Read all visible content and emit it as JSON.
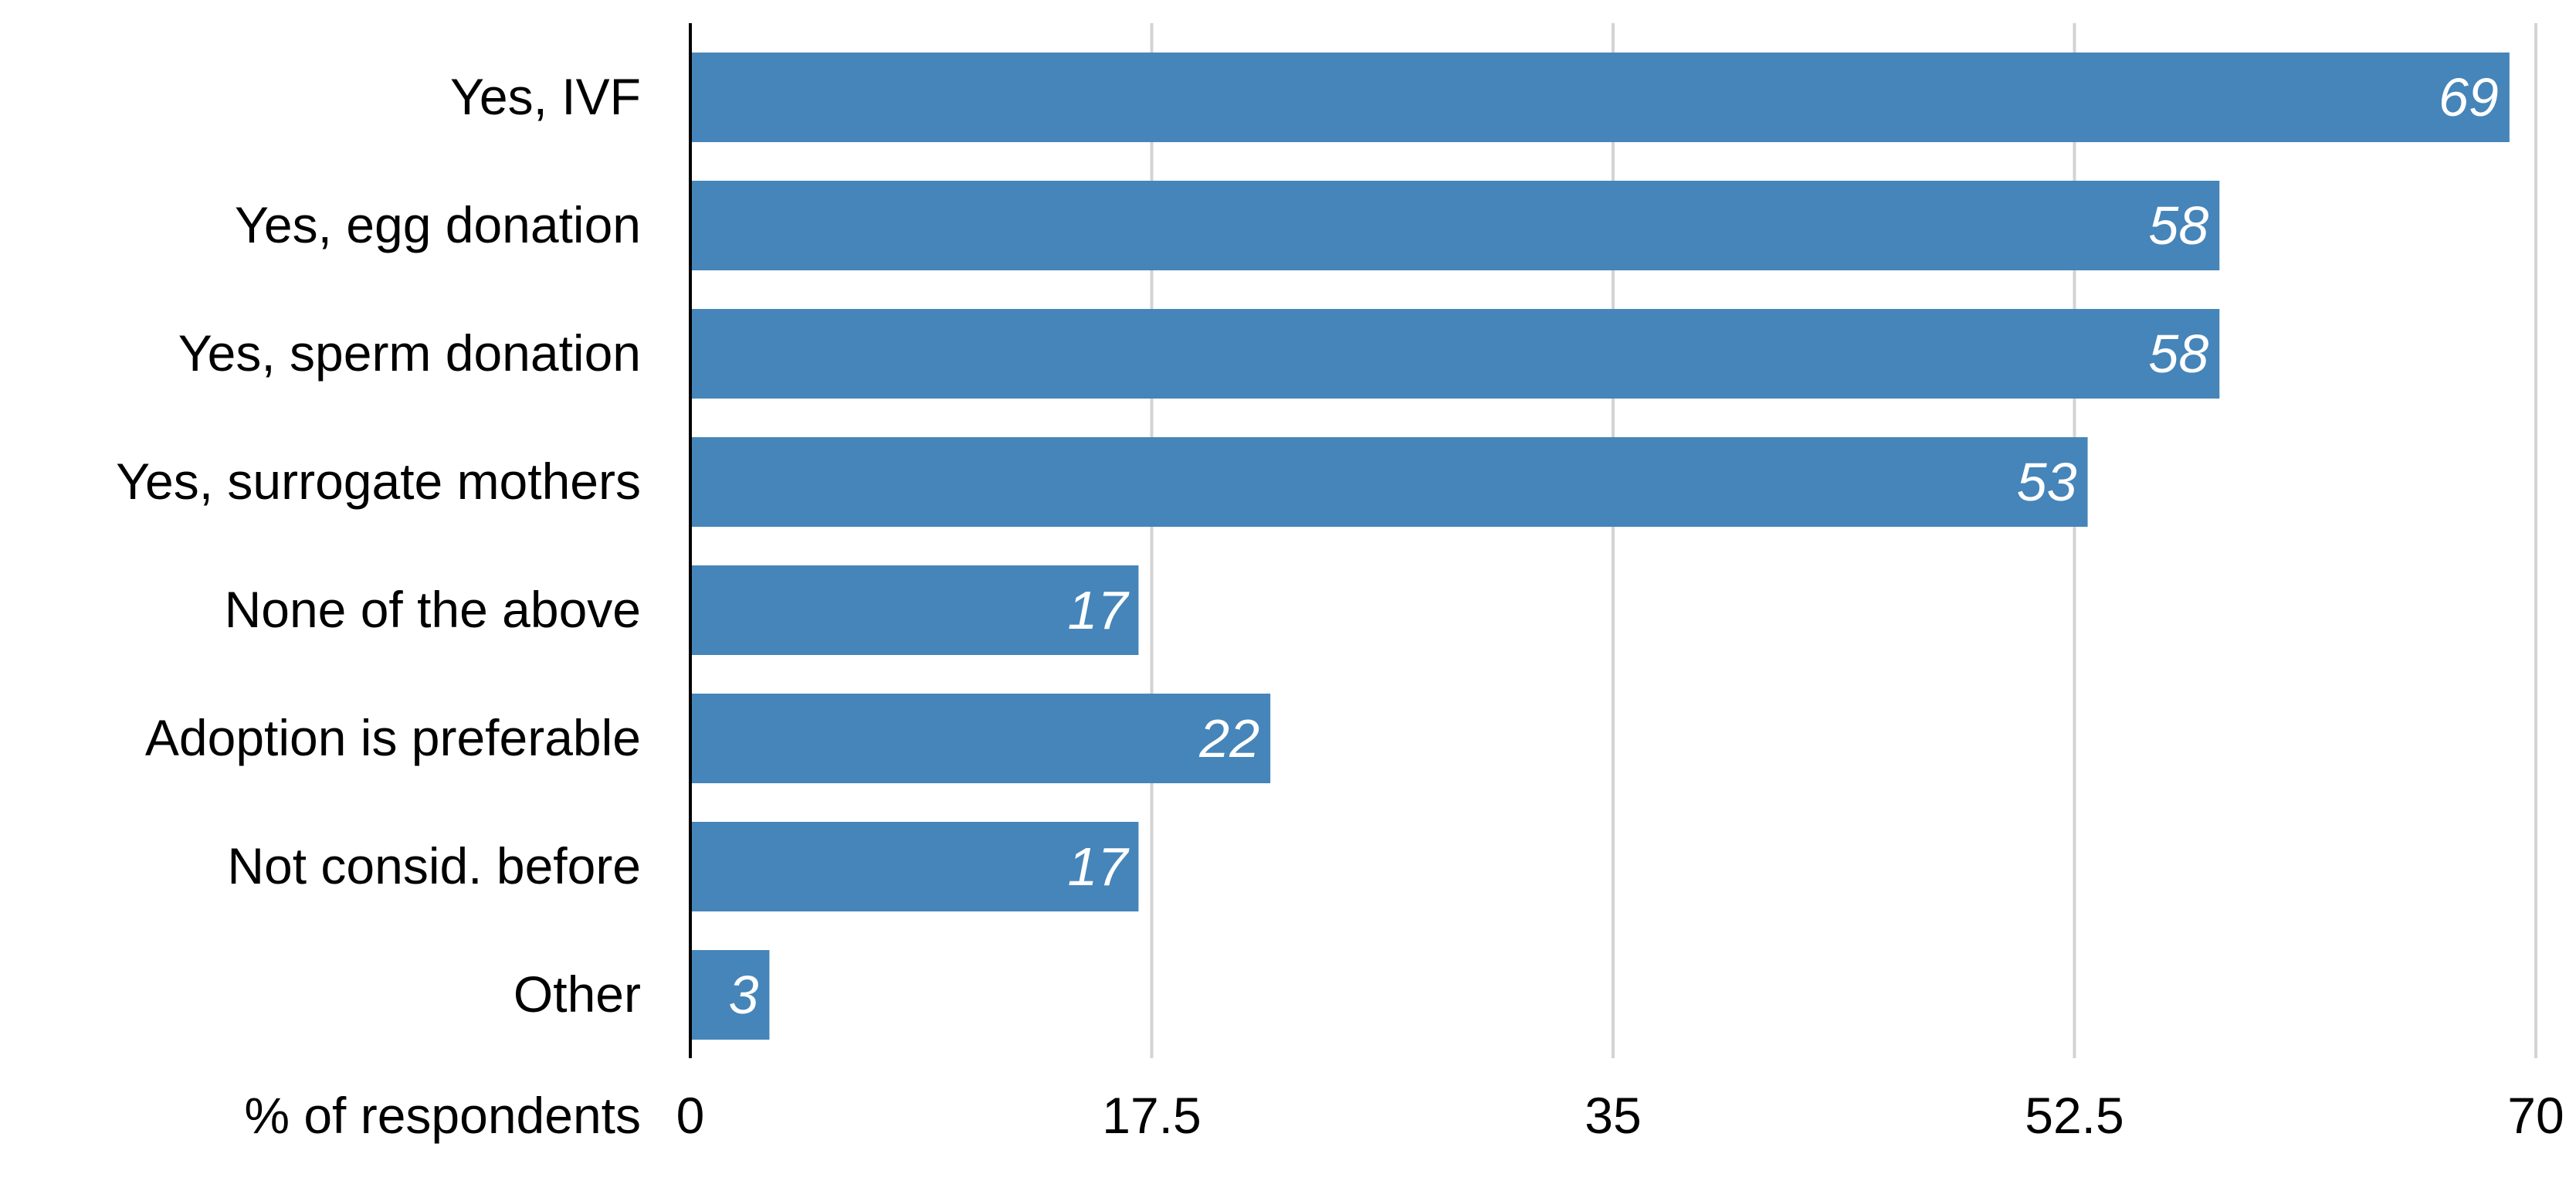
{
  "colors": {
    "bar": "#4585b9",
    "grid": "#d3d3d3",
    "axis": "#000000",
    "text": "#000000",
    "bar_label": "#ffffff",
    "background": "#ffffff"
  },
  "chart_data": {
    "type": "bar",
    "orientation": "horizontal",
    "title": "",
    "xlabel": "% of respondents",
    "ylabel": "",
    "categories": [
      "Yes, IVF",
      "Yes, egg donation",
      "Yes, sperm donation",
      "Yes, surrogate mothers",
      "None of the above",
      "Adoption is preferable",
      "Not consid. before",
      "Other"
    ],
    "values": [
      69,
      58,
      58,
      53,
      17,
      22,
      17,
      3
    ],
    "value_labels": [
      "69",
      "58",
      "58",
      "53",
      "17",
      "22",
      "17",
      "3"
    ],
    "xlim": [
      0,
      70
    ],
    "xticks": [
      0,
      17.5,
      35,
      52.5,
      70
    ],
    "xtick_labels": [
      "0",
      "17.5",
      "35",
      "52.5",
      "70"
    ],
    "grid": true,
    "grid_axis": "x",
    "legend": "none"
  }
}
